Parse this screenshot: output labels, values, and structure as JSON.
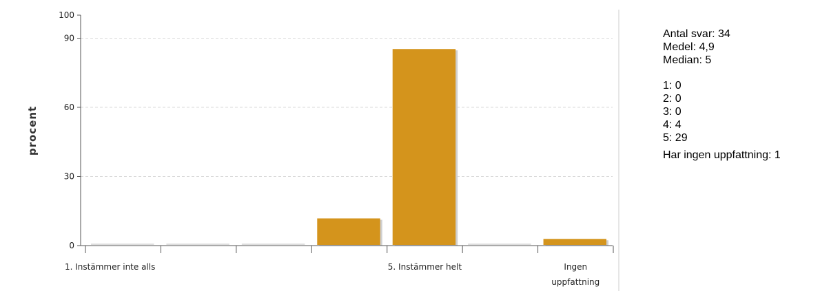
{
  "chart_data": {
    "type": "bar",
    "ylabel": "procent",
    "ylim": [
      0,
      100
    ],
    "yticks": [
      0,
      30,
      60,
      90,
      100
    ],
    "categories": [
      "1. Instämmer inte alls",
      "",
      "",
      "",
      "5. Instämmer helt",
      "",
      "Ingen uppfattning"
    ],
    "category_lines": [
      [
        "1. Instämmer inte alls"
      ],
      [
        ""
      ],
      [
        ""
      ],
      [
        ""
      ],
      [
        "5. Instämmer helt"
      ],
      [
        ""
      ],
      [
        "Ingen",
        "uppfattning"
      ]
    ],
    "values": [
      0,
      0,
      0,
      11.8,
      85.3,
      0,
      2.9
    ],
    "bar_color": "#d4941c",
    "zero_line_color": "#dddddd",
    "grid": true
  },
  "stats": {
    "antal": "Antal svar: 34",
    "medel": "Medel: 4,9",
    "median": "Median: 5",
    "counts": [
      "1: 0",
      "2: 0",
      "3: 0",
      "4: 4",
      "5: 29"
    ],
    "no_opinion": "Har ingen uppfattning: 1"
  }
}
